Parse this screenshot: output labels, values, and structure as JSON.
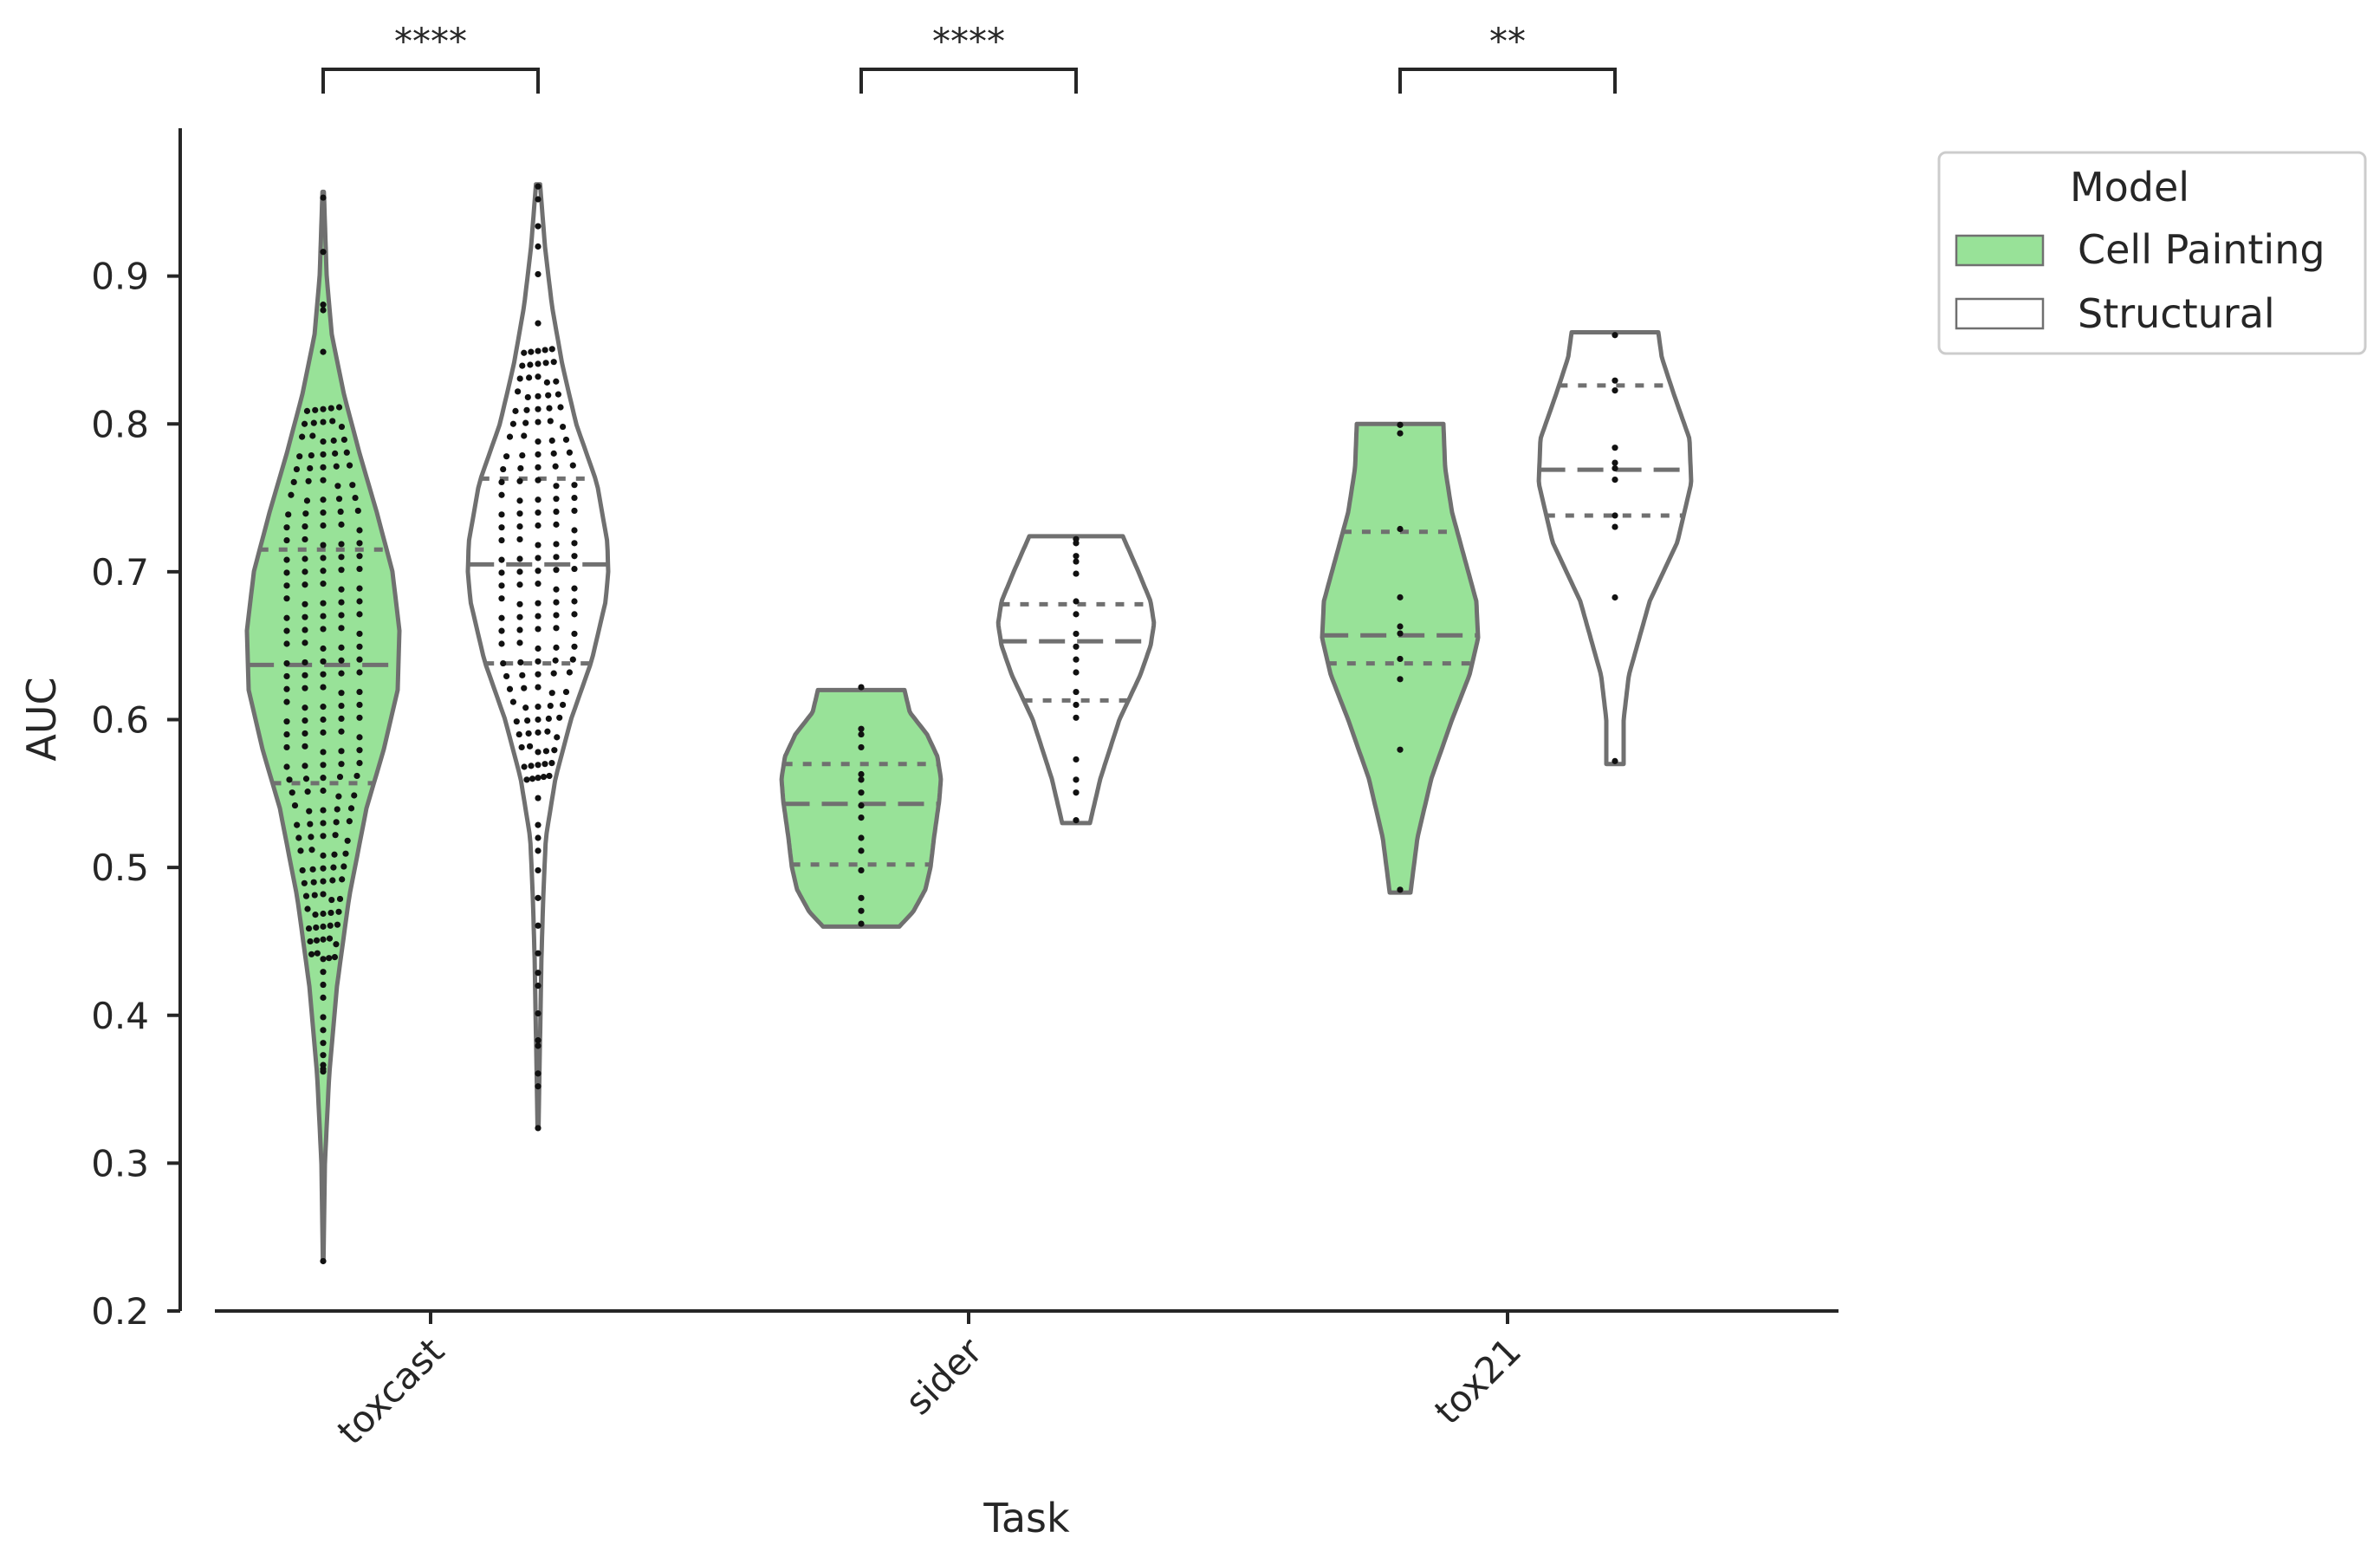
{
  "chart_data": {
    "type": "violin",
    "xlabel": "Task",
    "ylabel": "AUC",
    "ylim": [
      0.2,
      1.0
    ],
    "yticks": [
      "0.2",
      "0.3",
      "0.4",
      "0.5",
      "0.6",
      "0.7",
      "0.8",
      "0.9"
    ],
    "categories": [
      "toxcast",
      "sider",
      "tox21"
    ],
    "legend": {
      "title": "Model",
      "placement": "outside-top-right"
    },
    "series": [
      {
        "name": "Cell Painting",
        "color": "#98e298",
        "violins": [
          {
            "category": "toxcast",
            "min": 0.235,
            "max": 0.957,
            "q1": 0.557,
            "median": 0.637,
            "q3": 0.715,
            "profile": [
              [
                0.235,
                0.002
              ],
              [
                0.3,
                0.01
              ],
              [
                0.36,
                0.035
              ],
              [
                0.42,
                0.08
              ],
              [
                0.48,
                0.15
              ],
              [
                0.54,
                0.25
              ],
              [
                0.58,
                0.35
              ],
              [
                0.62,
                0.43
              ],
              [
                0.66,
                0.44
              ],
              [
                0.7,
                0.4
              ],
              [
                0.74,
                0.31
              ],
              [
                0.78,
                0.21
              ],
              [
                0.82,
                0.12
              ],
              [
                0.86,
                0.05
              ],
              [
                0.9,
                0.02
              ],
              [
                0.957,
                0.004
              ]
            ]
          },
          {
            "category": "sider",
            "min": 0.46,
            "max": 0.62,
            "q1": 0.502,
            "median": 0.543,
            "q3": 0.57,
            "profile": [
              [
                0.46,
                0.22
              ],
              [
                0.47,
                0.3
              ],
              [
                0.485,
                0.37
              ],
              [
                0.5,
                0.4
              ],
              [
                0.52,
                0.42
              ],
              [
                0.545,
                0.45
              ],
              [
                0.56,
                0.46
              ],
              [
                0.575,
                0.44
              ],
              [
                0.59,
                0.38
              ],
              [
                0.605,
                0.28
              ],
              [
                0.62,
                0.25
              ]
            ]
          },
          {
            "category": "tox21",
            "min": 0.483,
            "max": 0.8,
            "q1": 0.638,
            "median": 0.657,
            "q3": 0.727,
            "profile": [
              [
                0.483,
                0.06
              ],
              [
                0.52,
                0.1
              ],
              [
                0.56,
                0.18
              ],
              [
                0.6,
                0.3
              ],
              [
                0.63,
                0.4
              ],
              [
                0.655,
                0.45
              ],
              [
                0.68,
                0.44
              ],
              [
                0.71,
                0.37
              ],
              [
                0.74,
                0.3
              ],
              [
                0.77,
                0.26
              ],
              [
                0.8,
                0.25
              ]
            ]
          }
        ],
        "points": [
          {
            "category": "toxcast",
            "values": [
              0.235,
              0.36,
              0.363,
              0.367,
              0.375,
              0.38,
              0.39,
              0.4,
              0.41,
              0.42,
              0.43,
              0.44,
              0.45,
              0.46,
              0.47,
              0.48,
              0.49,
              0.5,
              0.51,
              0.52,
              0.53,
              0.54,
              0.55,
              0.56,
              0.57,
              0.58,
              0.59,
              0.6,
              0.61,
              0.62,
              0.63,
              0.64,
              0.65,
              0.66,
              0.67,
              0.68,
              0.69,
              0.7,
              0.71,
              0.72,
              0.73,
              0.74,
              0.75,
              0.76,
              0.77,
              0.78,
              0.79,
              0.8,
              0.81,
              0.85,
              0.875,
              0.88,
              0.917,
              0.955
            ]
          },
          {
            "category": "sider",
            "values": [
              0.46,
              0.47,
              0.48,
              0.5,
              0.51,
              0.52,
              0.535,
              0.54,
              0.55,
              0.56,
              0.565,
              0.58,
              0.59,
              0.595,
              0.62
            ]
          },
          {
            "category": "tox21",
            "values": [
              0.483,
              0.579,
              0.628,
              0.643,
              0.657,
              0.663,
              0.684,
              0.727,
              0.793,
              0.8
            ]
          }
        ]
      },
      {
        "name": "Structural",
        "color": "#ffffff",
        "violins": [
          {
            "category": "toxcast",
            "min": 0.325,
            "max": 0.962,
            "q1": 0.638,
            "median": 0.705,
            "q3": 0.763,
            "profile": [
              [
                0.325,
                0.003
              ],
              [
                0.36,
                0.008
              ],
              [
                0.4,
                0.014
              ],
              [
                0.44,
                0.02
              ],
              [
                0.48,
                0.03
              ],
              [
                0.52,
                0.045
              ],
              [
                0.56,
                0.1
              ],
              [
                0.6,
                0.19
              ],
              [
                0.64,
                0.31
              ],
              [
                0.68,
                0.39
              ],
              [
                0.7,
                0.405
              ],
              [
                0.72,
                0.4
              ],
              [
                0.76,
                0.34
              ],
              [
                0.8,
                0.22
              ],
              [
                0.84,
                0.14
              ],
              [
                0.88,
                0.08
              ],
              [
                0.92,
                0.04
              ],
              [
                0.962,
                0.012
              ]
            ]
          },
          {
            "category": "sider",
            "min": 0.53,
            "max": 0.724,
            "q1": 0.613,
            "median": 0.653,
            "q3": 0.678,
            "profile": [
              [
                0.53,
                0.08
              ],
              [
                0.56,
                0.14
              ],
              [
                0.6,
                0.25
              ],
              [
                0.63,
                0.37
              ],
              [
                0.65,
                0.43
              ],
              [
                0.665,
                0.45
              ],
              [
                0.68,
                0.43
              ],
              [
                0.7,
                0.36
              ],
              [
                0.724,
                0.27
              ]
            ]
          },
          {
            "category": "tox21",
            "min": 0.57,
            "max": 0.862,
            "q1": 0.738,
            "median": 0.769,
            "q3": 0.826,
            "profile": [
              [
                0.57,
                0.05
              ],
              [
                0.6,
                0.05
              ],
              [
                0.63,
                0.08
              ],
              [
                0.68,
                0.2
              ],
              [
                0.72,
                0.36
              ],
              [
                0.76,
                0.44
              ],
              [
                0.79,
                0.43
              ],
              [
                0.82,
                0.34
              ],
              [
                0.845,
                0.27
              ],
              [
                0.862,
                0.25
              ]
            ]
          }
        ],
        "points": [
          {
            "category": "toxcast",
            "values": [
              0.325,
              0.35,
              0.36,
              0.38,
              0.385,
              0.4,
              0.42,
              0.43,
              0.44,
              0.46,
              0.48,
              0.5,
              0.51,
              0.52,
              0.53,
              0.545,
              0.56,
              0.57,
              0.58,
              0.59,
              0.6,
              0.61,
              0.62,
              0.63,
              0.64,
              0.65,
              0.66,
              0.67,
              0.68,
              0.69,
              0.7,
              0.71,
              0.72,
              0.73,
              0.74,
              0.75,
              0.76,
              0.77,
              0.78,
              0.79,
              0.8,
              0.81,
              0.82,
              0.83,
              0.84,
              0.85,
              0.87,
              0.9,
              0.92,
              0.935,
              0.95,
              0.96
            ]
          },
          {
            "category": "sider",
            "values": [
              0.53,
              0.55,
              0.56,
              0.575,
              0.6,
              0.61,
              0.62,
              0.63,
              0.64,
              0.65,
              0.66,
              0.67,
              0.68,
              0.7,
              0.705,
              0.71,
              0.72,
              0.724
            ]
          },
          {
            "category": "tox21",
            "values": [
              0.57,
              0.682,
              0.731,
              0.74,
              0.761,
              0.77,
              0.775,
              0.782,
              0.822,
              0.83,
              0.862
            ]
          }
        ]
      }
    ],
    "annotations": [
      {
        "category": "toxcast",
        "label": "****"
      },
      {
        "category": "sider",
        "label": "****"
      },
      {
        "category": "tox21",
        "label": "**"
      }
    ]
  }
}
